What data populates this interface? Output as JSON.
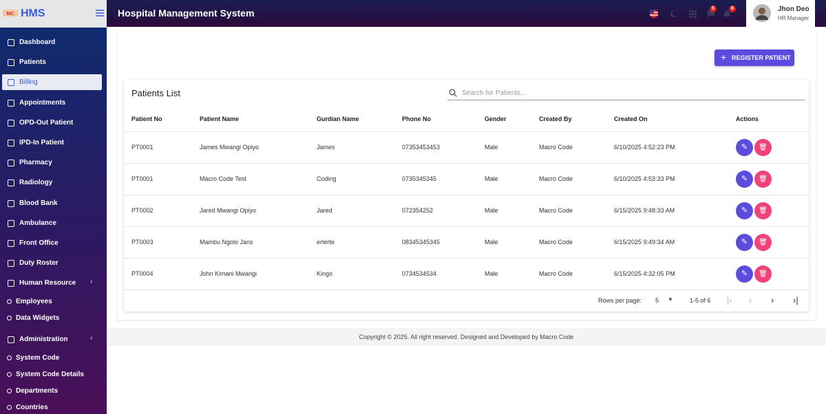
{
  "brand": "HMS",
  "header": {
    "title": "Hospital Management System",
    "badges": [
      5,
      8
    ]
  },
  "user": {
    "name": "Jhon Deo",
    "role": "HR Manager"
  },
  "menu": [
    {
      "label": "Dashboard"
    },
    {
      "label": "Patients"
    },
    {
      "label": "Billing"
    },
    {
      "label": "Appointments"
    },
    {
      "label": "OPD-Out Patient"
    },
    {
      "label": "IPD-In Patient"
    },
    {
      "label": "Pharmacy"
    },
    {
      "label": "Radiology"
    },
    {
      "label": "Blood Bank"
    },
    {
      "label": "Ambulance"
    },
    {
      "label": "Front Office"
    },
    {
      "label": "Duty Roster"
    },
    {
      "label": "Human Resource",
      "children": [
        "Employees",
        "Data Widgets"
      ]
    },
    {
      "label": "Administration",
      "children": [
        "System Code",
        "System Code Details",
        "Departments",
        "Countries"
      ]
    }
  ],
  "button": "REGISTER PATIENT",
  "table": {
    "title": "Patients List",
    "search_placeholder": "Search for Patients...",
    "columns": [
      "Patient No",
      "Patient Name",
      "Gurdian Name",
      "Phone No",
      "Gender",
      "Created By",
      "Created On",
      "Actions"
    ],
    "rows": [
      [
        "PT0001",
        "James Mwangi Opiyo",
        "James",
        "07353453453",
        "Male",
        "Macro Code",
        "6/10/2025 4:52:23 PM"
      ],
      [
        "PT0001",
        "Macro Code Test",
        "Coding",
        "0735345345",
        "Male",
        "Macro Code",
        "6/10/2025 4:53:33 PM"
      ],
      [
        "PT0002",
        "Jared Mwangi Opiyo",
        "Jared",
        "072354252",
        "Male",
        "Macro Code",
        "6/15/2025 9:48:33 AM"
      ],
      [
        "PT0003",
        "Mambu Ngolo Jans",
        "erterte",
        "08345345345",
        "Male",
        "Macro Code",
        "6/15/2025 9:49:34 AM"
      ],
      [
        "PT0004",
        "John Kimani Mwangi",
        "Kingo",
        "0734534534",
        "Male",
        "Macro Code",
        "6/15/2025 4:32:05 PM"
      ]
    ]
  },
  "pagination": {
    "label": "Rows per page:",
    "rows_per_page": 5,
    "range": "1-5 of 6"
  },
  "footer": "Copyright © 2025. All right reserved. Designed and Developed by Macro Code"
}
